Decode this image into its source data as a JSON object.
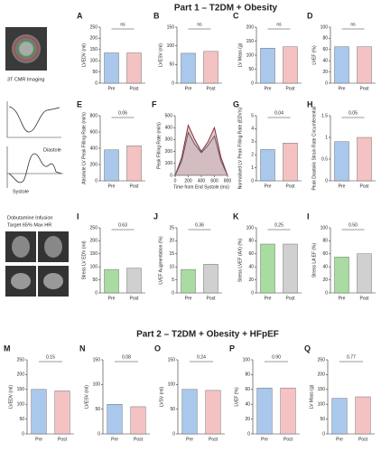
{
  "part1_title": "Part 1 – T2DM + Obesity",
  "part2_title": "Part 2 – T2DM + Obesity + HFpEF",
  "imaging_label": "3T CMR Imaging",
  "schematic_labels": [
    "Diastole",
    "Systole"
  ],
  "dobutamine_label": [
    "Dobutamine Infusion",
    "Target 65% Max HR"
  ],
  "chart_data": [
    {
      "type": "bar",
      "panel": "A",
      "ylabel": "LVEDV (ml)",
      "categories": [
        "Pre",
        "Post"
      ],
      "values": [
        135,
        135
      ],
      "colors": [
        "#a9c8ec",
        "#f4c2c2"
      ],
      "ylim": [
        0,
        250
      ],
      "yticks": [
        0,
        50,
        100,
        150,
        200,
        250
      ],
      "annotation": "ns"
    },
    {
      "type": "bar",
      "panel": "B",
      "ylabel": "LVESV (ml)",
      "categories": [
        "Pre",
        "Post"
      ],
      "values": [
        80,
        85
      ],
      "colors": [
        "#a9c8ec",
        "#f4c2c2"
      ],
      "ylim": [
        0,
        150
      ],
      "yticks": [
        0,
        50,
        100,
        150
      ],
      "annotation": "ns"
    },
    {
      "type": "bar",
      "panel": "C",
      "ylabel": "LV Mass (g)",
      "categories": [
        "Pre",
        "Post"
      ],
      "values": [
        125,
        130
      ],
      "colors": [
        "#a9c8ec",
        "#f4c2c2"
      ],
      "ylim": [
        0,
        200
      ],
      "yticks": [
        0,
        50,
        100,
        150,
        200
      ],
      "annotation": "ns"
    },
    {
      "type": "bar",
      "panel": "D",
      "ylabel": "LVEF (%)",
      "categories": [
        "Pre",
        "Post"
      ],
      "values": [
        65,
        65
      ],
      "colors": [
        "#a9c8ec",
        "#f4c2c2"
      ],
      "ylim": [
        0,
        100
      ],
      "yticks": [
        0,
        20,
        40,
        60,
        80,
        100
      ],
      "annotation": "ns"
    },
    {
      "type": "bar",
      "panel": "E",
      "ylabel": "Absolute LV Peak Filling Rate (ml/s)",
      "categories": [
        "Pre",
        "Post"
      ],
      "values": [
        380,
        430
      ],
      "colors": [
        "#a9c8ec",
        "#f4c2c2"
      ],
      "ylim": [
        0,
        800
      ],
      "yticks": [
        0,
        200,
        400,
        600,
        800
      ],
      "annotation": "0.06"
    },
    {
      "type": "line",
      "panel": "F",
      "ylabel": "Peak Filling Rate (ml/s)",
      "xlabel": "Time from End Systole (ms)",
      "x": [
        0,
        100,
        200,
        300,
        400,
        500,
        600,
        700,
        800
      ],
      "series": [
        {
          "color": "#8b2e2e",
          "values": [
            0,
            150,
            420,
            300,
            200,
            280,
            400,
            150,
            0
          ]
        },
        {
          "color": "#6a5a7a",
          "values": [
            0,
            120,
            360,
            260,
            190,
            250,
            330,
            120,
            0
          ]
        }
      ],
      "xlim": [
        0,
        800
      ],
      "xticks": [
        0,
        200,
        400,
        600,
        800
      ],
      "ylim": [
        0,
        500
      ],
      "yticks": [
        0,
        100,
        200,
        300,
        400,
        500
      ]
    },
    {
      "type": "bar",
      "panel": "G",
      "ylabel": "Normalised LV Peak Filling Rate (EDV/s)",
      "categories": [
        "Pre",
        "Post"
      ],
      "values": [
        2.4,
        2.9
      ],
      "colors": [
        "#a9c8ec",
        "#f4c2c2"
      ],
      "ylim": [
        0,
        5
      ],
      "yticks": [
        0,
        1,
        2,
        3,
        4,
        5
      ],
      "annotation": "0.04"
    },
    {
      "type": "bar",
      "panel": "H",
      "ylabel": "Peak Diastolic Strain Rate Circumferential",
      "categories": [
        "Pre",
        "Post"
      ],
      "values": [
        0.9,
        1.0
      ],
      "colors": [
        "#a9c8ec",
        "#f4c2c2"
      ],
      "ylim": [
        0,
        1.5
      ],
      "yticks": [
        0,
        0.5,
        1,
        1.5
      ],
      "annotation": "0.05"
    },
    {
      "type": "bar",
      "panel": "I",
      "ylabel": "Stress LV EDV (ml)",
      "categories": [
        "Pre",
        "Post"
      ],
      "values": [
        90,
        95
      ],
      "colors": [
        "#a8dca0",
        "#d0d0d0"
      ],
      "ylim": [
        0,
        250
      ],
      "yticks": [
        0,
        50,
        100,
        150,
        200,
        250
      ],
      "annotation": "0.63"
    },
    {
      "type": "bar",
      "panel": "J",
      "ylabel": "LVEF Augmentation (%)",
      "categories": [
        "Pre",
        "Post"
      ],
      "values": [
        9,
        11
      ],
      "colors": [
        "#a8dca0",
        "#d0d0d0"
      ],
      "ylim": [
        0,
        25
      ],
      "yticks": [
        0,
        5,
        10,
        15,
        20,
        25
      ],
      "annotation": "0.36"
    },
    {
      "type": "bar",
      "panel": "K",
      "ylabel": "Stress LVEF (AX) (%)",
      "categories": [
        "Pre",
        "Post"
      ],
      "values": [
        75,
        75
      ],
      "colors": [
        "#a8dca0",
        "#d0d0d0"
      ],
      "ylim": [
        0,
        100
      ],
      "yticks": [
        0,
        20,
        40,
        60,
        80,
        100
      ],
      "annotation": "0.25"
    },
    {
      "type": "bar",
      "panel": "I",
      "ylabel": "Stress LA EF (%)",
      "categories": [
        "Pre",
        "Post"
      ],
      "values": [
        55,
        60
      ],
      "colors": [
        "#a8dca0",
        "#d0d0d0"
      ],
      "ylim": [
        0,
        100
      ],
      "yticks": [
        0,
        20,
        40,
        60,
        80,
        100
      ],
      "annotation": "0.50"
    },
    {
      "type": "bar",
      "panel": "M",
      "ylabel": "LVEDV (ml)",
      "categories": [
        "Pre",
        "Post"
      ],
      "values": [
        150,
        145
      ],
      "colors": [
        "#a9c8ec",
        "#f4c2c2"
      ],
      "ylim": [
        0,
        250
      ],
      "yticks": [
        0,
        50,
        100,
        150,
        200,
        250
      ],
      "annotation": "0.15"
    },
    {
      "type": "bar",
      "panel": "N",
      "ylabel": "LVESV (ml)",
      "categories": [
        "Pre",
        "Post"
      ],
      "values": [
        60,
        55
      ],
      "colors": [
        "#a9c8ec",
        "#f4c2c2"
      ],
      "ylim": [
        0,
        150
      ],
      "yticks": [
        0,
        50,
        100,
        150
      ],
      "annotation": "0.08"
    },
    {
      "type": "bar",
      "panel": "O",
      "ylabel": "LVSV (ml)",
      "categories": [
        "Pre",
        "Post"
      ],
      "values": [
        90,
        88
      ],
      "colors": [
        "#a9c8ec",
        "#f4c2c2"
      ],
      "ylim": [
        0,
        150
      ],
      "yticks": [
        0,
        50,
        100,
        150
      ],
      "annotation": "0.24"
    },
    {
      "type": "bar",
      "panel": "P",
      "ylabel": "LVEF (%)",
      "categories": [
        "Pre",
        "Post"
      ],
      "values": [
        62,
        62
      ],
      "colors": [
        "#a9c8ec",
        "#f4c2c2"
      ],
      "ylim": [
        0,
        100
      ],
      "yticks": [
        0,
        20,
        40,
        60,
        80,
        100
      ],
      "annotation": "0.90"
    },
    {
      "type": "bar",
      "panel": "Q",
      "ylabel": "LV Mass (g)",
      "categories": [
        "Pre",
        "Post"
      ],
      "values": [
        120,
        125
      ],
      "colors": [
        "#a9c8ec",
        "#f4c2c2"
      ],
      "ylim": [
        0,
        250
      ],
      "yticks": [
        0,
        50,
        100,
        150,
        200,
        250
      ],
      "annotation": "0.77"
    }
  ]
}
